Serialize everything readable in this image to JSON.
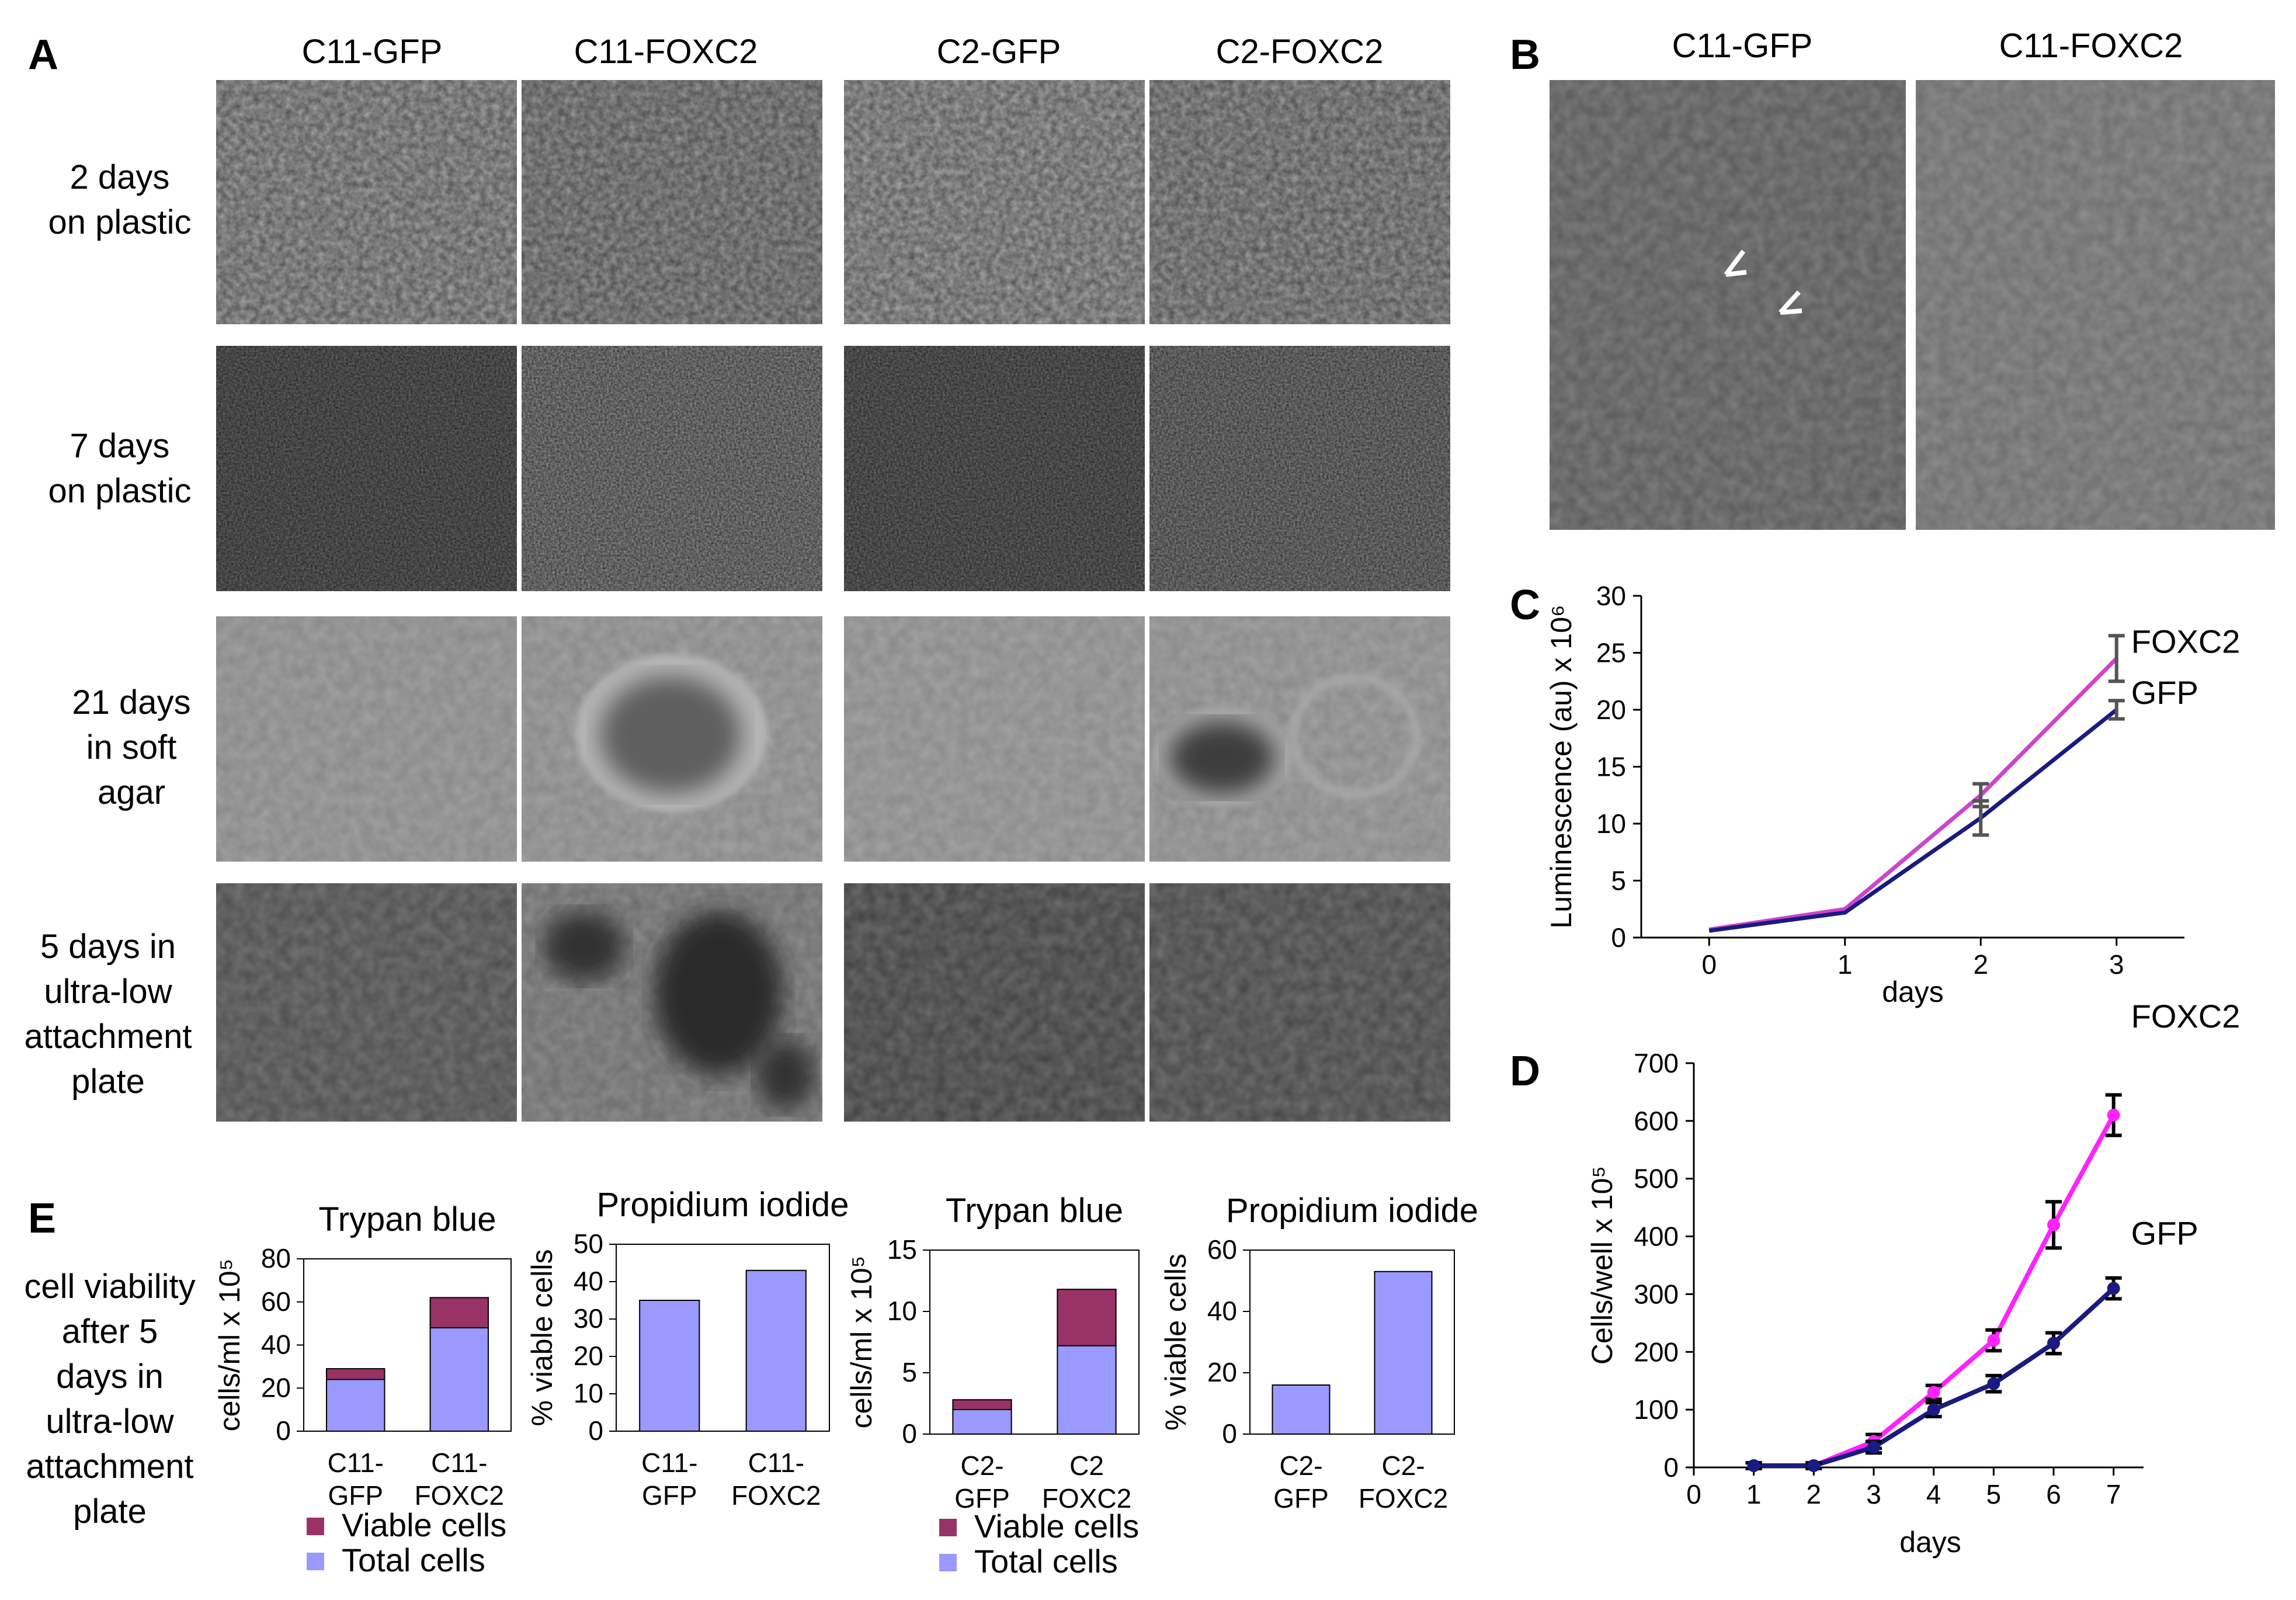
{
  "panel_letters": {
    "a": "A",
    "b": "B",
    "c": "C",
    "d": "D",
    "e": "E"
  },
  "panelA": {
    "columns": [
      "C11-GFP",
      "C11-FOXC2",
      "C2-GFP",
      "C2-FOXC2"
    ],
    "rows": [
      [
        "2 days",
        "on plastic"
      ],
      [
        "7 days",
        "on plastic"
      ],
      [
        "21 days",
        "in soft",
        "agar"
      ],
      [
        "5 days in",
        "ultra-low",
        "attachment",
        "plate"
      ]
    ]
  },
  "panelB": {
    "columns": [
      "C11-GFP",
      "C11-FOXC2"
    ]
  },
  "panelE": {
    "row_label": [
      "cell viability",
      "after 5",
      "days in",
      "ultra-low",
      "attachment",
      "plate"
    ],
    "legend": {
      "viable": "Viable cells",
      "total": "Total cells"
    }
  },
  "colors": {
    "foxc2_c": "#cc44cc",
    "gfp_c": "#1a1a80",
    "foxc2_d": "#ff22ff",
    "gfp_d": "#1a1a80",
    "viable": "#993366",
    "total": "#9999ff",
    "error_c": "#555555",
    "error_d": "#000000"
  },
  "chart_data": [
    {
      "id": "C",
      "type": "line",
      "xlabel": "days",
      "ylabel": "Luminescence (au) x 10⁶",
      "x": [
        0,
        1,
        2,
        3
      ],
      "xlim": [
        -0.5,
        3.5
      ],
      "ylim": [
        0,
        30
      ],
      "yticks": [
        0,
        5,
        10,
        15,
        20,
        25,
        30
      ],
      "series": [
        {
          "name": "FOXC2",
          "values": [
            0.7,
            2.5,
            12.5,
            24.5
          ],
          "errors": [
            0,
            0,
            1.0,
            2.0
          ]
        },
        {
          "name": "GFP",
          "values": [
            0.6,
            2.2,
            10.5,
            20.0
          ],
          "errors": [
            0,
            0,
            1.5,
            0.8
          ]
        }
      ]
    },
    {
      "id": "D",
      "type": "line",
      "xlabel": "days",
      "ylabel": "Cells/well x 10⁵",
      "x": [
        1,
        2,
        3,
        4,
        5,
        6,
        7
      ],
      "xticks": [
        0,
        1,
        2,
        3,
        4,
        5,
        6,
        7
      ],
      "xlim": [
        0,
        7.5
      ],
      "ylim": [
        0,
        700
      ],
      "yticks": [
        0,
        100,
        200,
        300,
        400,
        500,
        600,
        700
      ],
      "series": [
        {
          "name": "FOXC2",
          "values": [
            3,
            3,
            45,
            130,
            220,
            420,
            610
          ],
          "errors": [
            5,
            5,
            12,
            12,
            18,
            40,
            35
          ]
        },
        {
          "name": "GFP",
          "values": [
            3,
            3,
            35,
            100,
            145,
            215,
            310
          ],
          "errors": [
            5,
            5,
            10,
            12,
            14,
            18,
            18
          ]
        }
      ]
    },
    {
      "id": "E1",
      "type": "bar",
      "title": "Trypan blue",
      "ylabel": "cells/ml x 10⁵",
      "ylim": [
        0,
        80
      ],
      "yticks": [
        0,
        20,
        40,
        60,
        80
      ],
      "categories": [
        [
          "C11-",
          "GFP"
        ],
        [
          "C11-",
          "FOXC2"
        ]
      ],
      "series": [
        {
          "name": "Total cells",
          "values": [
            24,
            48
          ]
        },
        {
          "name": "Viable cells",
          "values": [
            29,
            62
          ]
        }
      ]
    },
    {
      "id": "E2",
      "type": "bar",
      "title": "Propidium iodide",
      "ylabel": "% viable cells",
      "ylim": [
        0,
        50
      ],
      "yticks": [
        0,
        10,
        20,
        30,
        40,
        50
      ],
      "categories": [
        [
          "C11-",
          "GFP"
        ],
        [
          "C11-",
          "FOXC2"
        ]
      ],
      "series": [
        {
          "values": [
            35,
            43
          ]
        }
      ]
    },
    {
      "id": "E3",
      "type": "bar",
      "title": "Trypan blue",
      "ylabel": "cells/ml x 10⁵",
      "ylim": [
        0,
        15
      ],
      "yticks": [
        0,
        5,
        10,
        15
      ],
      "categories": [
        [
          "C2-",
          "GFP"
        ],
        [
          "C2",
          "FOXC2"
        ]
      ],
      "series": [
        {
          "name": "Total cells",
          "values": [
            2.0,
            7.2
          ]
        },
        {
          "name": "Viable cells",
          "values": [
            2.8,
            11.8
          ]
        }
      ]
    },
    {
      "id": "E4",
      "type": "bar",
      "title": "Propidium iodide",
      "ylabel": "% viable cells",
      "ylim": [
        0,
        60
      ],
      "yticks": [
        0,
        20,
        40,
        60
      ],
      "categories": [
        [
          "C2-",
          "GFP"
        ],
        [
          "C2-",
          "FOXC2"
        ]
      ],
      "series": [
        {
          "values": [
            16,
            53
          ]
        }
      ]
    }
  ]
}
